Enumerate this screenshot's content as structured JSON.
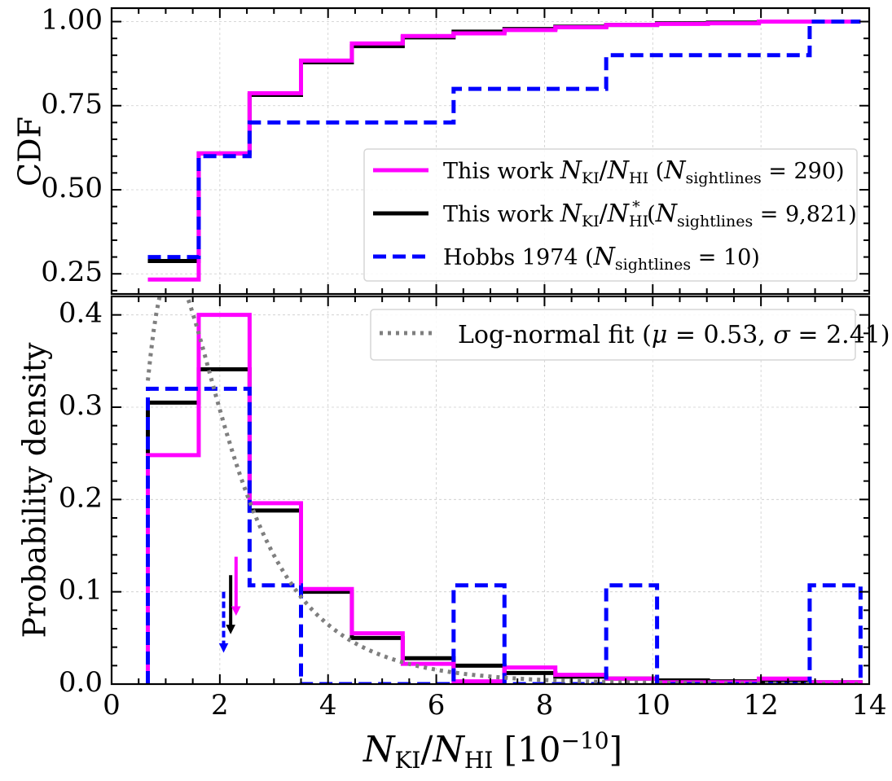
{
  "colors": {
    "this_work_ratio": "#ff00ff",
    "this_work_star": "#000000",
    "hobbs": "#0000ff",
    "lognormal": "#7f7f7f"
  },
  "chart_data": [
    {
      "panel": "top",
      "type": "line",
      "style": "step-cdf",
      "ylabel": "CDF",
      "xlim": [
        0,
        14
      ],
      "ylim": [
        0.19,
        1.04
      ],
      "ytick_values": [
        0.25,
        0.5,
        0.75,
        1.0
      ],
      "ytick_labels": [
        "0.25",
        "0.50",
        "0.75",
        "1.00"
      ],
      "legend_position": "lower-right",
      "bin_edges": [
        0.67,
        1.61,
        2.55,
        3.5,
        4.44,
        5.38,
        6.32,
        7.26,
        8.2,
        9.14,
        10.08,
        11.02,
        11.96,
        12.9,
        13.84
      ],
      "series": [
        {
          "name": "This work N_KI/N_HI (N_sightlines = 290)",
          "legend": {
            "a": "This work ",
            "n1": "N",
            "s1": "KI",
            "slash": "/",
            "n2": "N",
            "s2": "HI",
            "sup": "",
            "p1": " (",
            "n3": "N",
            "s3": "sightlines",
            "p2": " = 290)"
          },
          "color_key": "this_work_ratio",
          "dash": "solid",
          "values": [
            0.233,
            0.608,
            0.787,
            0.884,
            0.935,
            0.957,
            0.965,
            0.975,
            0.983,
            0.99,
            0.993,
            0.995,
            1.0,
            1.0
          ]
        },
        {
          "name": "This work N_KI/N*_HI (N_sightlines = 9,821)",
          "legend": {
            "a": "This work ",
            "n1": "N",
            "s1": "KI",
            "slash": "/",
            "n2": "N",
            "s2": "HI",
            "sup": "*",
            "p1": " (",
            "n3": "N",
            "s3": "sightlines",
            "p2": " = 9,821)"
          },
          "color_key": "this_work_star",
          "dash": "solid",
          "values": [
            0.288,
            0.608,
            0.782,
            0.879,
            0.927,
            0.953,
            0.97,
            0.978,
            0.985,
            0.99,
            0.995,
            0.997,
            1.0,
            1.0
          ]
        },
        {
          "name": "Hobbs 1974 (N_sightlines = 10)",
          "legend": {
            "a": "Hobbs 1974 ",
            "n1": "",
            "s1": "",
            "slash": "",
            "n2": "",
            "s2": "",
            "sup": "",
            "p1": "(",
            "n3": "N",
            "s3": "sightlines",
            "p2": " = 10)"
          },
          "color_key": "hobbs",
          "dash": "dashed",
          "values": [
            0.3,
            0.6,
            0.7,
            0.7,
            0.7,
            0.7,
            0.8,
            0.8,
            0.8,
            0.9,
            0.9,
            0.9,
            0.9,
            1.0
          ]
        }
      ]
    },
    {
      "panel": "bottom",
      "type": "line",
      "style": "step-histogram",
      "ylabel": "Probability density",
      "xlabel": "N_KI/N_HI [10^-10]",
      "xlabel_parts": {
        "n1": "N",
        "s1": "KI",
        "slash": "/",
        "n2": "N",
        "s2": "HI",
        "open": " [10",
        "exp": "−10",
        "close": "]"
      },
      "xlim": [
        0,
        14
      ],
      "ylim": [
        0,
        0.42
      ],
      "xtick_values": [
        0,
        2,
        4,
        6,
        8,
        10,
        12,
        14
      ],
      "xtick_labels": [
        "0",
        "2",
        "4",
        "6",
        "8",
        "10",
        "12",
        "14"
      ],
      "ytick_values": [
        0,
        0.1,
        0.2,
        0.3,
        0.4
      ],
      "ytick_labels": [
        "0.0",
        "0.1",
        "0.2",
        "0.3",
        "0.4"
      ],
      "legend_position": "top-right",
      "bin_edges": [
        0.67,
        1.61,
        2.55,
        3.5,
        4.44,
        5.38,
        6.32,
        7.26,
        8.2,
        9.14,
        10.08,
        11.02,
        11.96,
        12.9,
        13.84
      ],
      "series": [
        {
          "name": "This work N_KI/N_HI",
          "color_key": "this_work_ratio",
          "dash": "solid",
          "values": [
            0.248,
            0.4,
            0.196,
            0.103,
            0.055,
            0.022,
            0.003,
            0.018,
            0.01,
            0.006,
            0.002,
            0.002,
            0.006,
            0.002
          ]
        },
        {
          "name": "This work N_KI/N*_HI",
          "color_key": "this_work_star",
          "dash": "solid",
          "values": [
            0.305,
            0.341,
            0.188,
            0.1,
            0.05,
            0.028,
            0.02,
            0.012,
            0.008,
            0.006,
            0.004,
            0.003,
            0.003,
            0.002
          ]
        },
        {
          "name": "Hobbs 1974",
          "color_key": "hobbs",
          "dash": "dashed",
          "values": [
            0.32,
            0.32,
            0.107,
            0.0,
            0.0,
            0.0,
            0.107,
            0.0,
            0.0,
            0.107,
            0.0,
            0.0,
            0.0,
            0.107
          ]
        }
      ],
      "lognormal_fit": {
        "name": "Log-normal fit (μ = 0.53, σ = 2.41)",
        "legend": {
          "a": "Log-normal fit (",
          "mu": "μ",
          "b": " = 0.53, ",
          "sig": "σ",
          "c": " = 2.41)"
        },
        "color_key": "lognormal",
        "mu": 0.53,
        "sigma_display": 2.41,
        "shape_sigma": 0.65,
        "x_range": [
          0.67,
          13.84
        ]
      },
      "median_arrows": [
        {
          "color_key": "hobbs",
          "x": 2.07,
          "y_top": 0.1,
          "y_bottom": 0.035,
          "dash": "dashed"
        },
        {
          "color_key": "this_work_star",
          "x": 2.2,
          "y_top": 0.118,
          "y_bottom": 0.055,
          "dash": "solid"
        },
        {
          "color_key": "this_work_ratio",
          "x": 2.3,
          "y_top": 0.138,
          "y_bottom": 0.075,
          "dash": "solid"
        }
      ]
    }
  ]
}
